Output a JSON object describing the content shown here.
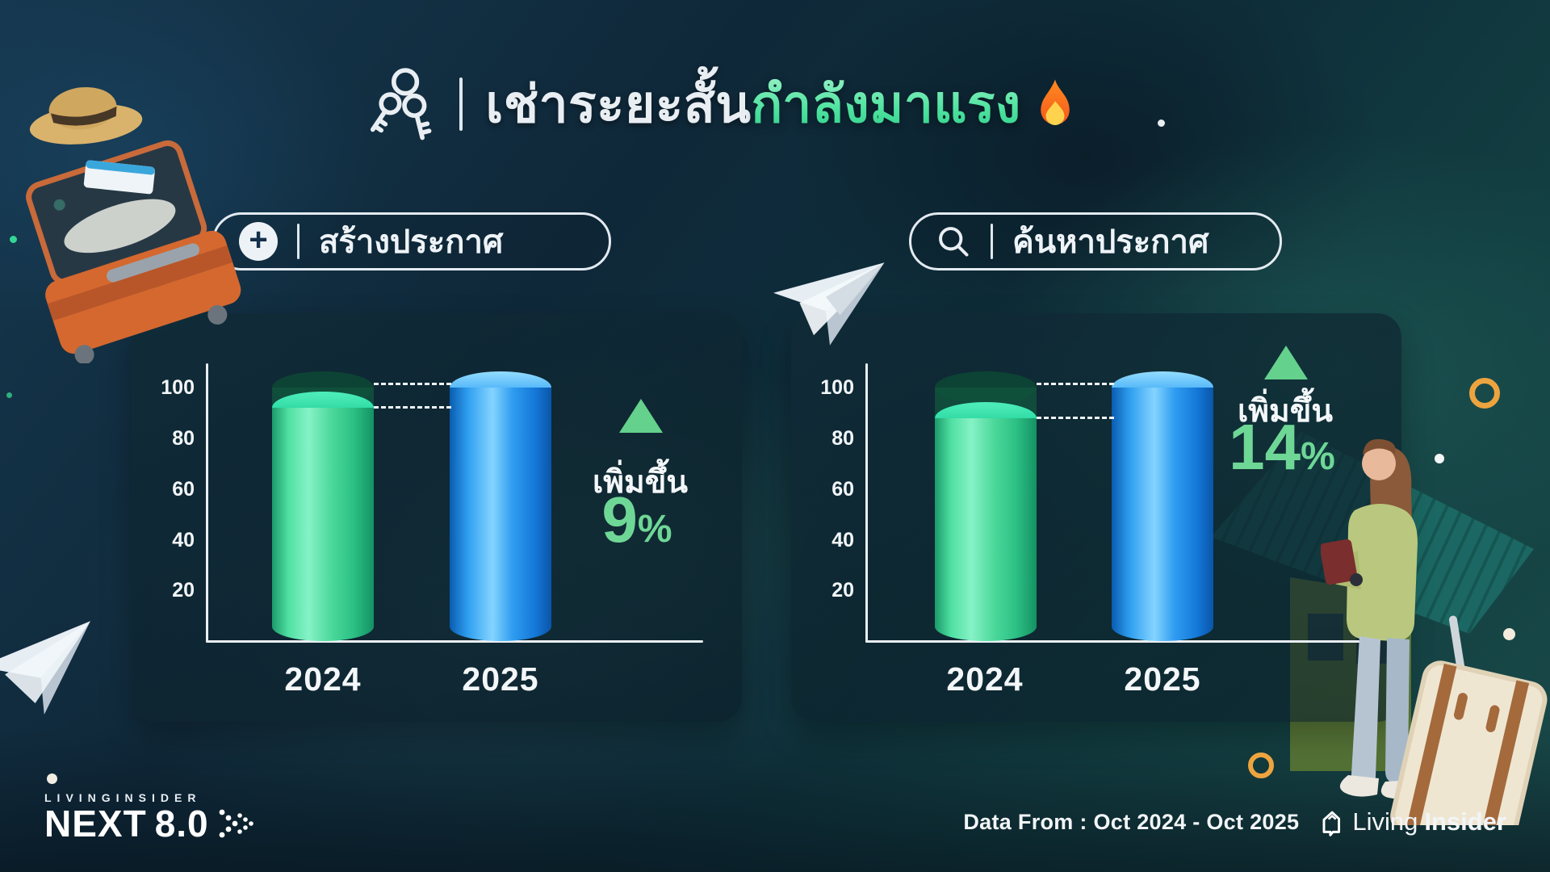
{
  "title": {
    "white": "เช่าระยะสั้น",
    "green": "กำลังมาแรง",
    "icon": "keys-icon",
    "suffix_icon": "fire-icon"
  },
  "buttons": {
    "create": "สร้างประกาศ",
    "search": "ค้นหาประกาศ"
  },
  "chart_data": [
    {
      "type": "bar",
      "title": "สร้างประกาศ",
      "categories": [
        "2024",
        "2025"
      ],
      "values": [
        92,
        100
      ],
      "ylim": [
        0,
        100
      ],
      "y_ticks": [
        100,
        80,
        60,
        40,
        20
      ],
      "grid": false,
      "bar_colors": [
        "#2ecf96",
        "#2b9df4"
      ],
      "ghost_cap_color": "rgba(17,84,62,0.8)",
      "increase": {
        "label": "เพิ่มขึ้น",
        "number": "9",
        "suffix": "%"
      }
    },
    {
      "type": "bar",
      "title": "ค้นหาประกาศ",
      "categories": [
        "2024",
        "2025"
      ],
      "values": [
        88,
        100
      ],
      "ylim": [
        0,
        100
      ],
      "y_ticks": [
        100,
        80,
        60,
        40,
        20
      ],
      "grid": false,
      "bar_colors": [
        "#2ecf96",
        "#2b9df4"
      ],
      "ghost_cap_color": "rgba(17,84,62,0.8)",
      "increase": {
        "label": "เพิ่มขึ้น",
        "number": "14",
        "suffix": "%"
      }
    }
  ],
  "footer": {
    "logo_small": "LIVINGINSIDER",
    "logo_big": "NEXT",
    "logo_version": "8.0",
    "data_from": "Data From : Oct 2024 - Oct  2025",
    "brand_living": "Living",
    "brand_insider": "Insider"
  },
  "colors": {
    "accent_green": "#5fd694",
    "bar_green": "#2ecf96",
    "bar_blue": "#2b9df4",
    "ring_orange": "#eda43f",
    "title_green": "#4fe3a0",
    "panel_bg": "rgba(12,34,44,0.65)"
  }
}
